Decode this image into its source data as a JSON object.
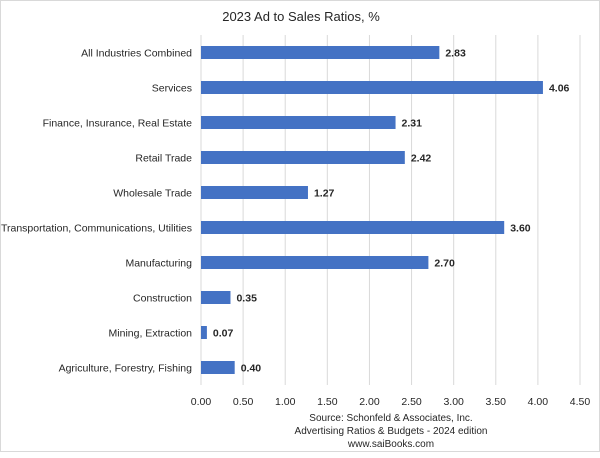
{
  "chart_data": {
    "type": "bar",
    "orientation": "horizontal",
    "title": "2023 Ad to Sales Ratios, %",
    "categories": [
      "All Industries Combined",
      "Services",
      "Finance, Insurance, Real Estate",
      "Retail Trade",
      "Wholesale Trade",
      "Transportation, Communications, Utilities",
      "Manufacturing",
      "Construction",
      "Mining, Extraction",
      "Agriculture, Forestry, Fishing"
    ],
    "values": [
      2.83,
      4.06,
      2.31,
      2.42,
      1.27,
      3.6,
      2.7,
      0.35,
      0.07,
      0.4
    ],
    "value_labels": [
      "2.83",
      "4.06",
      "2.31",
      "2.42",
      "1.27",
      "3.60",
      "2.70",
      "0.35",
      "0.07",
      "0.40"
    ],
    "xlim": [
      0,
      4.5
    ],
    "xticks": [
      "0.00",
      "0.50",
      "1.00",
      "1.50",
      "2.00",
      "2.50",
      "3.00",
      "3.50",
      "4.00",
      "4.50"
    ],
    "grid": "vertical",
    "bar_color": "#4472c4",
    "source_lines": [
      "Source: Schonfeld & Associates, Inc.",
      "Advertising Ratios & Budgets - 2024 edition",
      "www.saiBooks.com"
    ]
  }
}
